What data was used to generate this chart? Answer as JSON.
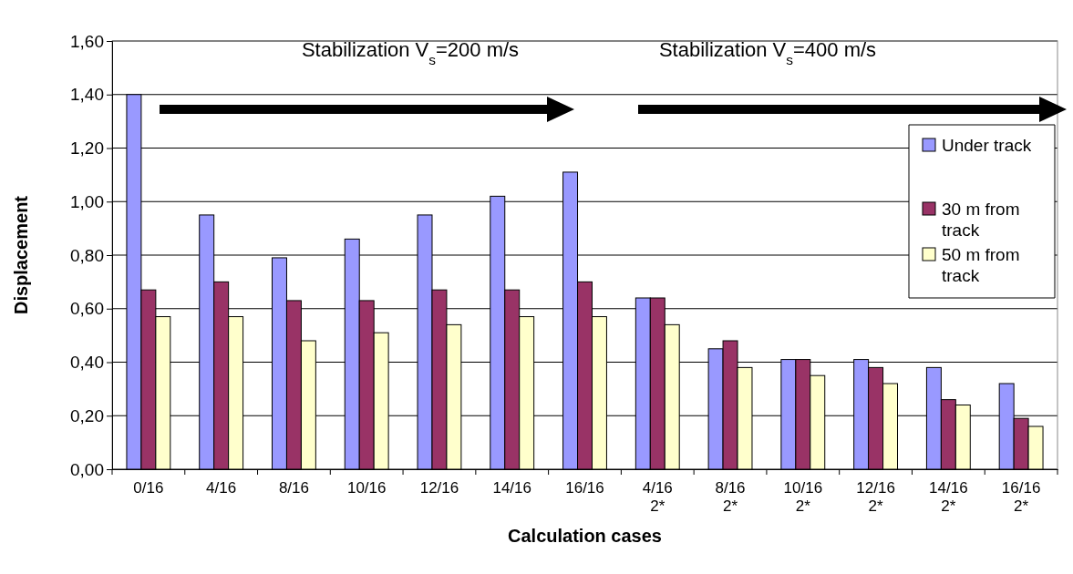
{
  "chart_data": {
    "type": "bar",
    "xlabel": "Calculation cases",
    "ylabel": "Displacement",
    "categories": [
      "0/16",
      "4/16",
      "8/16",
      "10/16",
      "12/16",
      "14/16",
      "16/16",
      "4/16\n2*",
      "8/16\n2*",
      "10/16\n2*",
      "12/16\n2*",
      "14/16\n2*",
      "16/16\n2*"
    ],
    "series": [
      {
        "name": "Under track",
        "color": "#9999ff",
        "values": [
          1.4,
          0.95,
          0.79,
          0.86,
          0.95,
          1.02,
          1.11,
          0.64,
          0.45,
          0.41,
          0.41,
          0.38,
          0.32
        ]
      },
      {
        "name": "30 m from\ntrack",
        "color": "#993366",
        "values": [
          0.67,
          0.7,
          0.63,
          0.63,
          0.67,
          0.67,
          0.7,
          0.64,
          0.48,
          0.41,
          0.38,
          0.26,
          0.19
        ]
      },
      {
        "name": "50 m from\ntrack",
        "color": "#ffffcc",
        "values": [
          0.57,
          0.57,
          0.48,
          0.51,
          0.54,
          0.57,
          0.57,
          0.54,
          0.38,
          0.35,
          0.32,
          0.24,
          0.16
        ]
      }
    ],
    "ylim": [
      0,
      1.6
    ],
    "yticks": [
      {
        "value": 0,
        "label": "0,00"
      },
      {
        "value": 0.2,
        "label": "0,20"
      },
      {
        "value": 0.4,
        "label": "0,40"
      },
      {
        "value": 0.6,
        "label": "0,60"
      },
      {
        "value": 0.8,
        "label": "0,80"
      },
      {
        "value": 1,
        "label": "1,00"
      },
      {
        "value": 1.2,
        "label": "1,20"
      },
      {
        "value": 1.4,
        "label": "1,40"
      },
      {
        "value": 1.6,
        "label": "1,60"
      }
    ],
    "grid": "y",
    "legend": "right",
    "annotations": [
      "Stabilization V$_{s}$=200 m/s",
      "Stabilization V$_{s}$=400 m/s"
    ]
  }
}
